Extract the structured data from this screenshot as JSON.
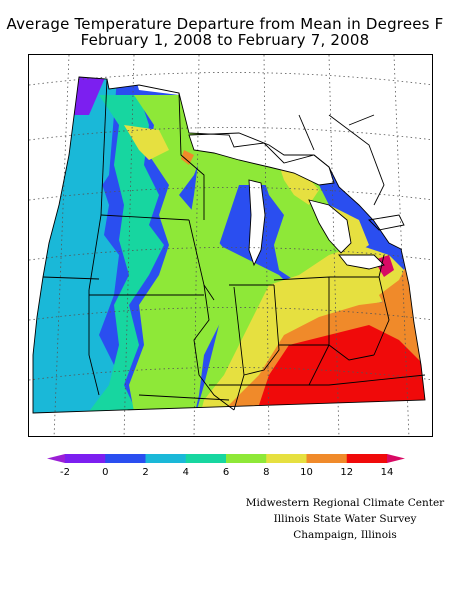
{
  "map": {
    "title_line1": "Average Temperature Departure from Mean in Degrees F",
    "title_line2": "February 1, 2008 to February 7, 2008",
    "units": "degrees F",
    "region": "Midwest United States",
    "legend": {
      "ticks": [
        "-2",
        "0",
        "2",
        "4",
        "6",
        "8",
        "10",
        "12",
        "14"
      ],
      "colors": [
        "#9b1fd6",
        "#7c1ff0",
        "#2a4ef0",
        "#1ab8d8",
        "#17d6a0",
        "#8ee838",
        "#e6e040",
        "#f08a2a",
        "#f00a0a",
        "#d80a64"
      ]
    },
    "credits": {
      "line1": "Midwestern Regional Climate Center",
      "line2": "Illinois State Water Survey",
      "line3": "Champaign, Illinois"
    }
  }
}
